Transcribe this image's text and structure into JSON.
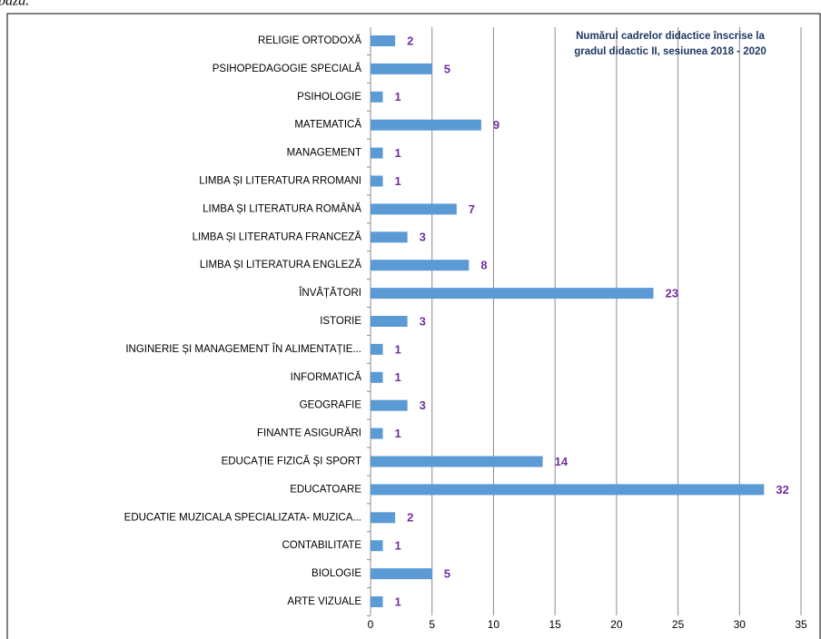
{
  "caption": "bază.",
  "chart_data": {
    "type": "bar",
    "orientation": "horizontal",
    "title": [
      "Numărul cadrelor didactice înscrise la",
      "gradul didactic II, sesiunea 2018 - 2020"
    ],
    "categories": [
      "RELIGIE ORTODOXĂ",
      "PSIHOPEDAGOGIE SPECIALĂ",
      "PSIHOLOGIE",
      "MATEMATICĂ",
      "MANAGEMENT",
      "LIMBA ȘI LITERATURA RROMANI",
      "LIMBA ȘI LITERATURA ROMÂNĂ",
      "LIMBA ȘI LITERATURA FRANCEZĂ",
      "LIMBA ȘI LITERATURA ENGLEZĂ",
      "ÎNVĂȚĂTORI",
      "ISTORIE",
      "INGINERIE ȘI MANAGEMENT ÎN ALIMENTAȚIE...",
      "INFORMATICĂ",
      "GEOGRAFIE",
      "FINANTE  ASIGURĂRI",
      "EDUCAȚIE FIZICĂ ȘI SPORT",
      "EDUCATOARE",
      "EDUCATIE MUZICALA SPECIALIZATA- MUZICA...",
      "CONTABILITATE",
      "BIOLOGIE",
      "ARTE VIZUALE"
    ],
    "values": [
      2,
      5,
      1,
      9,
      1,
      1,
      7,
      3,
      8,
      23,
      3,
      1,
      1,
      3,
      1,
      14,
      32,
      2,
      1,
      5,
      1
    ],
    "color": "#5b9bd5",
    "xlim": [
      0,
      35
    ],
    "xticks": [
      0,
      5,
      10,
      15,
      20,
      25,
      30,
      35
    ],
    "grid": true
  }
}
